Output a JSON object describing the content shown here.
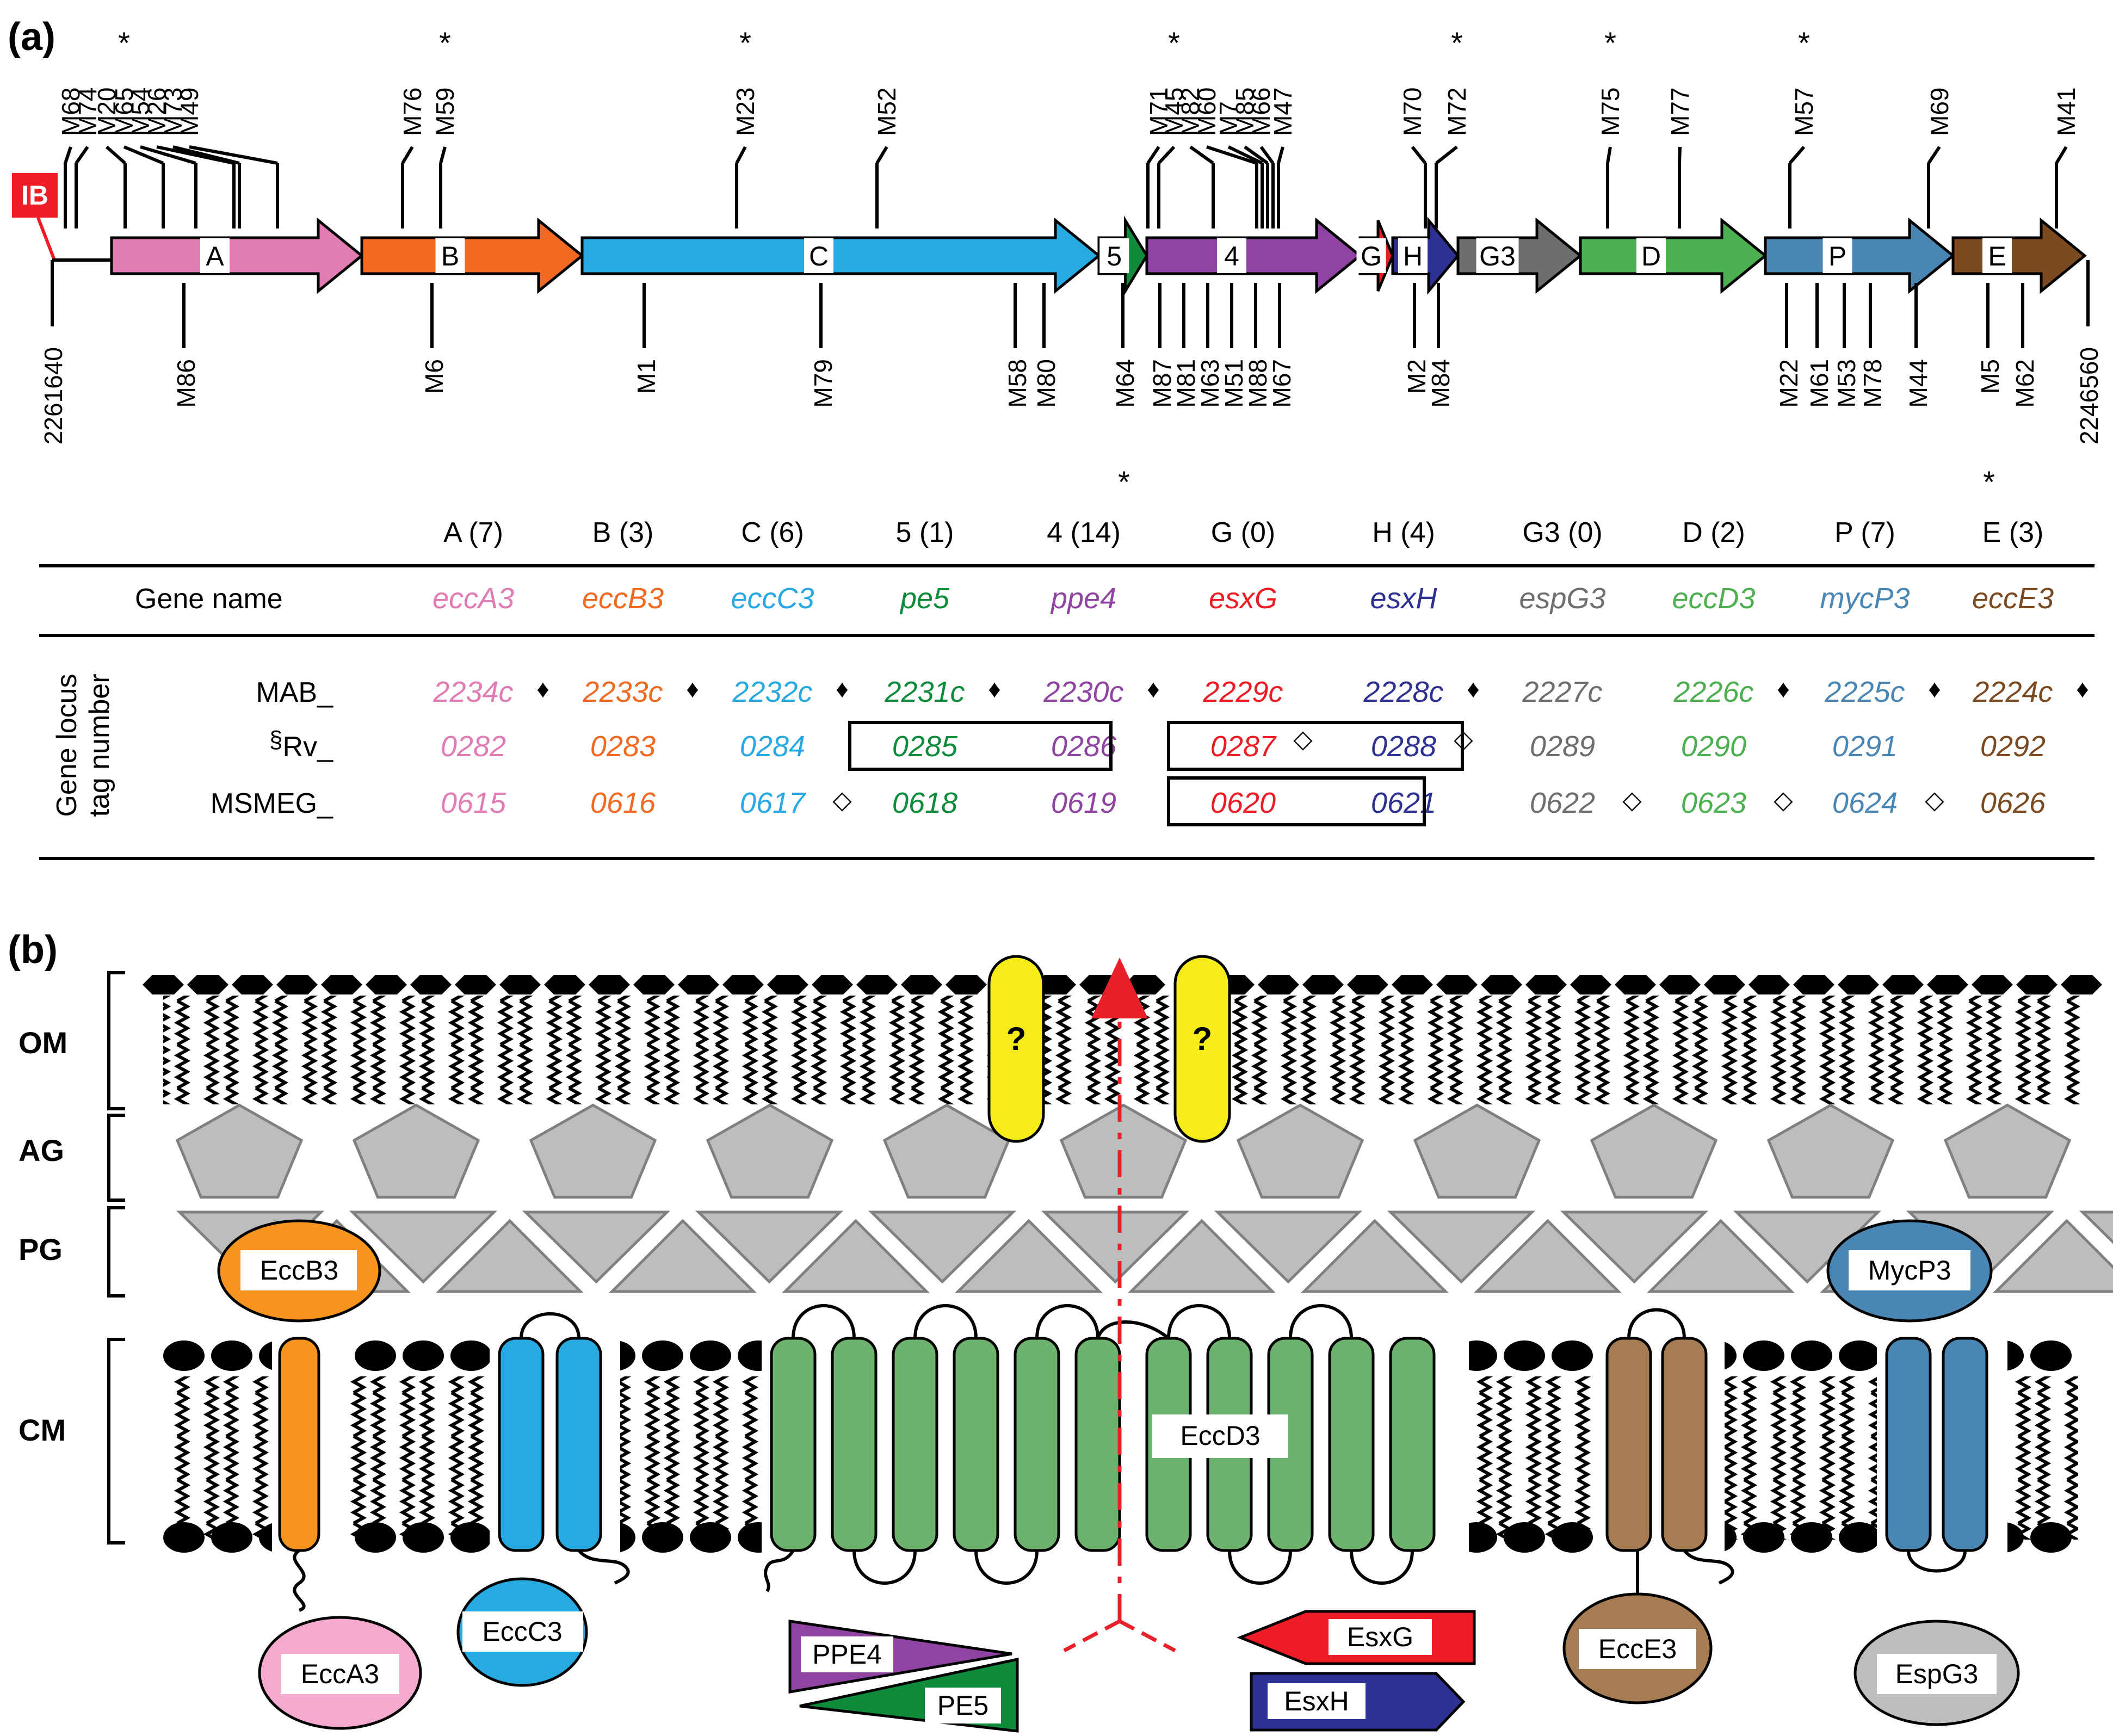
{
  "panel_a": {
    "label": "(a)",
    "ib_label": "IB",
    "coord_start": "2261640",
    "coord_end": "2246560",
    "genes": [
      {
        "short": "A",
        "count": "A (7)",
        "name": "eccA3",
        "color": "#E07BB4",
        "mab": "2234c",
        "rv": "0282",
        "msmeg": "0615",
        "mab_mark": "♦",
        "msmeg_mark": ""
      },
      {
        "short": "B",
        "count": "B (3)",
        "name": "eccB3",
        "color": "#F26A21",
        "mab": "2233c",
        "rv": "0283",
        "msmeg": "0616",
        "mab_mark": "♦",
        "msmeg_mark": ""
      },
      {
        "short": "C",
        "count": "C (6)",
        "name": "eccC3",
        "color": "#27AAE1",
        "mab": "2232c",
        "rv": "0284",
        "msmeg": "0617",
        "mab_mark": "♦",
        "msmeg_mark": "◇"
      },
      {
        "short": "5",
        "count": "5 (1)",
        "name": "pe5",
        "color": "#0F8C3B",
        "mab": "2231c",
        "rv": "0285",
        "msmeg": "0618",
        "mab_mark": "♦",
        "msmeg_mark": ""
      },
      {
        "short": "4",
        "count": "4 (14)",
        "name": "ppe4",
        "color": "#8E44A0",
        "mab": "2230c",
        "rv": "0286",
        "msmeg": "0619",
        "mab_mark": "♦",
        "msmeg_mark": ""
      },
      {
        "short": "G",
        "count": "G (0)",
        "name": "esxG",
        "color": "#EE1C25",
        "mab": "2229c",
        "rv": "0287",
        "msmeg": "0620",
        "mab_mark": "",
        "msmeg_mark": ""
      },
      {
        "short": "H",
        "count": "H (4)",
        "name": "esxH",
        "color": "#2E3192",
        "mab": "2228c",
        "rv": "0288",
        "msmeg": "0621",
        "mab_mark": "♦",
        "msmeg_mark": ""
      },
      {
        "short": "G3",
        "count": "G3 (0)",
        "name": "espG3",
        "color": "#6D6E70",
        "mab": "2227c",
        "rv": "0289",
        "msmeg": "0622",
        "mab_mark": "",
        "msmeg_mark": "◇"
      },
      {
        "short": "D",
        "count": "D (2)",
        "name": "eccD3",
        "color": "#4CAF50",
        "mab": "2226c",
        "rv": "0290",
        "msmeg": "0623",
        "mab_mark": "♦",
        "msmeg_mark": "◇"
      },
      {
        "short": "P",
        "count": "P (7)",
        "name": "mycP3",
        "color": "#4A86B4",
        "mab": "2225c",
        "rv": "0291",
        "msmeg": "0624",
        "mab_mark": "♦",
        "msmeg_mark": "◇"
      },
      {
        "short": "E",
        "count": "E (3)",
        "name": "eccE3",
        "color": "#7B4A21",
        "mab": "2224c",
        "rv": "0292",
        "msmeg": "0626",
        "mab_mark": "♦",
        "msmeg_mark": ""
      }
    ],
    "rv_0287_mark": "◇",
    "rv_0288_mark": "◇",
    "mutations_top": [
      "M68",
      "M74",
      "M20",
      "M65",
      "M54",
      "M26",
      "M73",
      "M49",
      "M76",
      "M59",
      "M23",
      "M52",
      "M71",
      "M45",
      "M82",
      "M60",
      "M7",
      "M85",
      "M66",
      "M47",
      "M70",
      "M72",
      "M75",
      "M77",
      "M57",
      "M69",
      "M41"
    ],
    "mutations_bottom": [
      "M86",
      "M6",
      "M1",
      "M79",
      "M58",
      "M80",
      "M64",
      "M87",
      "M81",
      "M63",
      "M51",
      "M88",
      "M67",
      "M2",
      "M84",
      "M22",
      "M61",
      "M53",
      "M78",
      "M44",
      "M5",
      "M62"
    ],
    "star": "*",
    "table": {
      "gene_name_header": "Gene name",
      "locus_header_line1": "Gene locus",
      "locus_header_line2": "tag number",
      "mab_prefix": "MAB_",
      "rv_symbol": "§",
      "rv_prefix": "Rv_",
      "msmeg_prefix": "MSMEG_"
    }
  },
  "panel_b": {
    "label": "(b)",
    "layers": [
      "OM",
      "AG",
      "PG",
      "CM"
    ],
    "unknown_marker": "?",
    "proteins": {
      "eccb3": "EccB3",
      "mycp3": "MycP3",
      "eccd3": "EccD3",
      "ecca3": "EccA3",
      "eccc3": "EccC3",
      "ppe4": "PPE4",
      "pe5": "PE5",
      "esxg": "EsxG",
      "esxh": "EsxH",
      "ecce3": "EccE3",
      "espg3": "EspG3"
    },
    "colors": {
      "eccb3": "#F7941D",
      "mycp3": "#4A86B4",
      "eccd3": "#6DB36D",
      "ecca3": "#F5A9CF",
      "eccc3": "#27AAE1",
      "ppe4": "#8E44A0",
      "pe5": "#0F8C3B",
      "esxg": "#EE1C25",
      "esxh": "#2E3192",
      "ecce3": "#A67C52",
      "espg3": "#BDBDBD",
      "question": "#F5EC1A",
      "layer_fill": "#BDBDBD",
      "arrow": "#E8202A"
    }
  }
}
